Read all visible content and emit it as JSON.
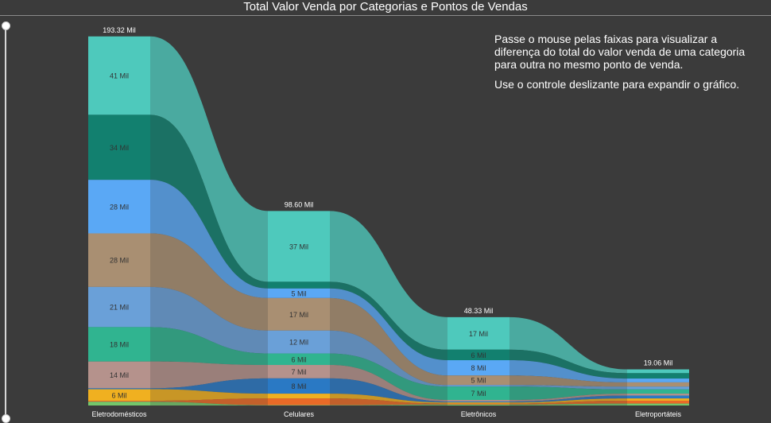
{
  "header": {
    "title": "Total Valor Venda por Categorias e Pontos de Vendas"
  },
  "annotation": {
    "line1": "Passe o mouse pelas faixas para visualizar a diferença do total do valor venda de uma categoria para outra no mesmo ponto de venda.",
    "line2": "Use o controle deslizante para expandir o gráfico."
  },
  "chart_data": {
    "type": "ribbon",
    "value_unit": "Mil",
    "categories": [
      "Eletrodomésticos",
      "Celulares",
      "Eletrônicos",
      "Eletroportáteis"
    ],
    "totals": [
      {
        "value": 193.32,
        "label": "193.32 Mil"
      },
      {
        "value": 98.6,
        "label": "98.60 Mil"
      },
      {
        "value": 48.33,
        "label": "48.33 Mil"
      },
      {
        "value": 19.06,
        "label": "19.06 Mil"
      }
    ],
    "series": [
      {
        "color": "#4ec9bc",
        "values": [
          41,
          37,
          17,
          2.0
        ],
        "labels": [
          "41 Mil",
          "37 Mil",
          "17 Mil",
          ""
        ]
      },
      {
        "color": "#12806f",
        "values": [
          34,
          3.5,
          5.5,
          2.8
        ],
        "labels": [
          "34 Mil",
          "",
          "6 Mil",
          ""
        ]
      },
      {
        "color": "#5aa8f5",
        "values": [
          28,
          5,
          8,
          2.0
        ],
        "labels": [
          "28 Mil",
          "5 Mil",
          "8 Mil",
          ""
        ]
      },
      {
        "color": "#a98f72",
        "values": [
          28,
          17,
          5,
          2.2
        ],
        "labels": [
          "28 Mil",
          "17 Mil",
          "5 Mil",
          ""
        ]
      },
      {
        "color": "#6aa0d8",
        "values": [
          21,
          12,
          0.8,
          1.5
        ],
        "labels": [
          "21 Mil",
          "12 Mil",
          "",
          ""
        ]
      },
      {
        "color": "#30b490",
        "values": [
          18,
          6,
          7,
          2.2
        ],
        "labels": [
          "18 Mil",
          "6 Mil",
          "7 Mil",
          ""
        ]
      },
      {
        "color": "#b5928c",
        "values": [
          14,
          7,
          0.8,
          1.0
        ],
        "labels": [
          "14 Mil",
          "7 Mil",
          "",
          ""
        ]
      },
      {
        "color": "#2a79c4",
        "values": [
          0.5,
          8,
          0.5,
          1.5
        ],
        "labels": [
          "",
          "8 Mil",
          "",
          ""
        ]
      },
      {
        "color": "#f0b020",
        "values": [
          6,
          2.5,
          0.6,
          1.2
        ],
        "labels": [
          "6 Mil",
          "",
          "",
          ""
        ]
      },
      {
        "color": "#e96a27",
        "values": [
          0.5,
          3.5,
          0.5,
          1.5
        ],
        "labels": [
          "",
          "",
          "",
          ""
        ]
      },
      {
        "color": "#74c66b",
        "values": [
          2,
          0.2,
          0.5,
          1.0
        ],
        "labels": [
          "",
          "",
          "",
          ""
        ]
      }
    ]
  }
}
